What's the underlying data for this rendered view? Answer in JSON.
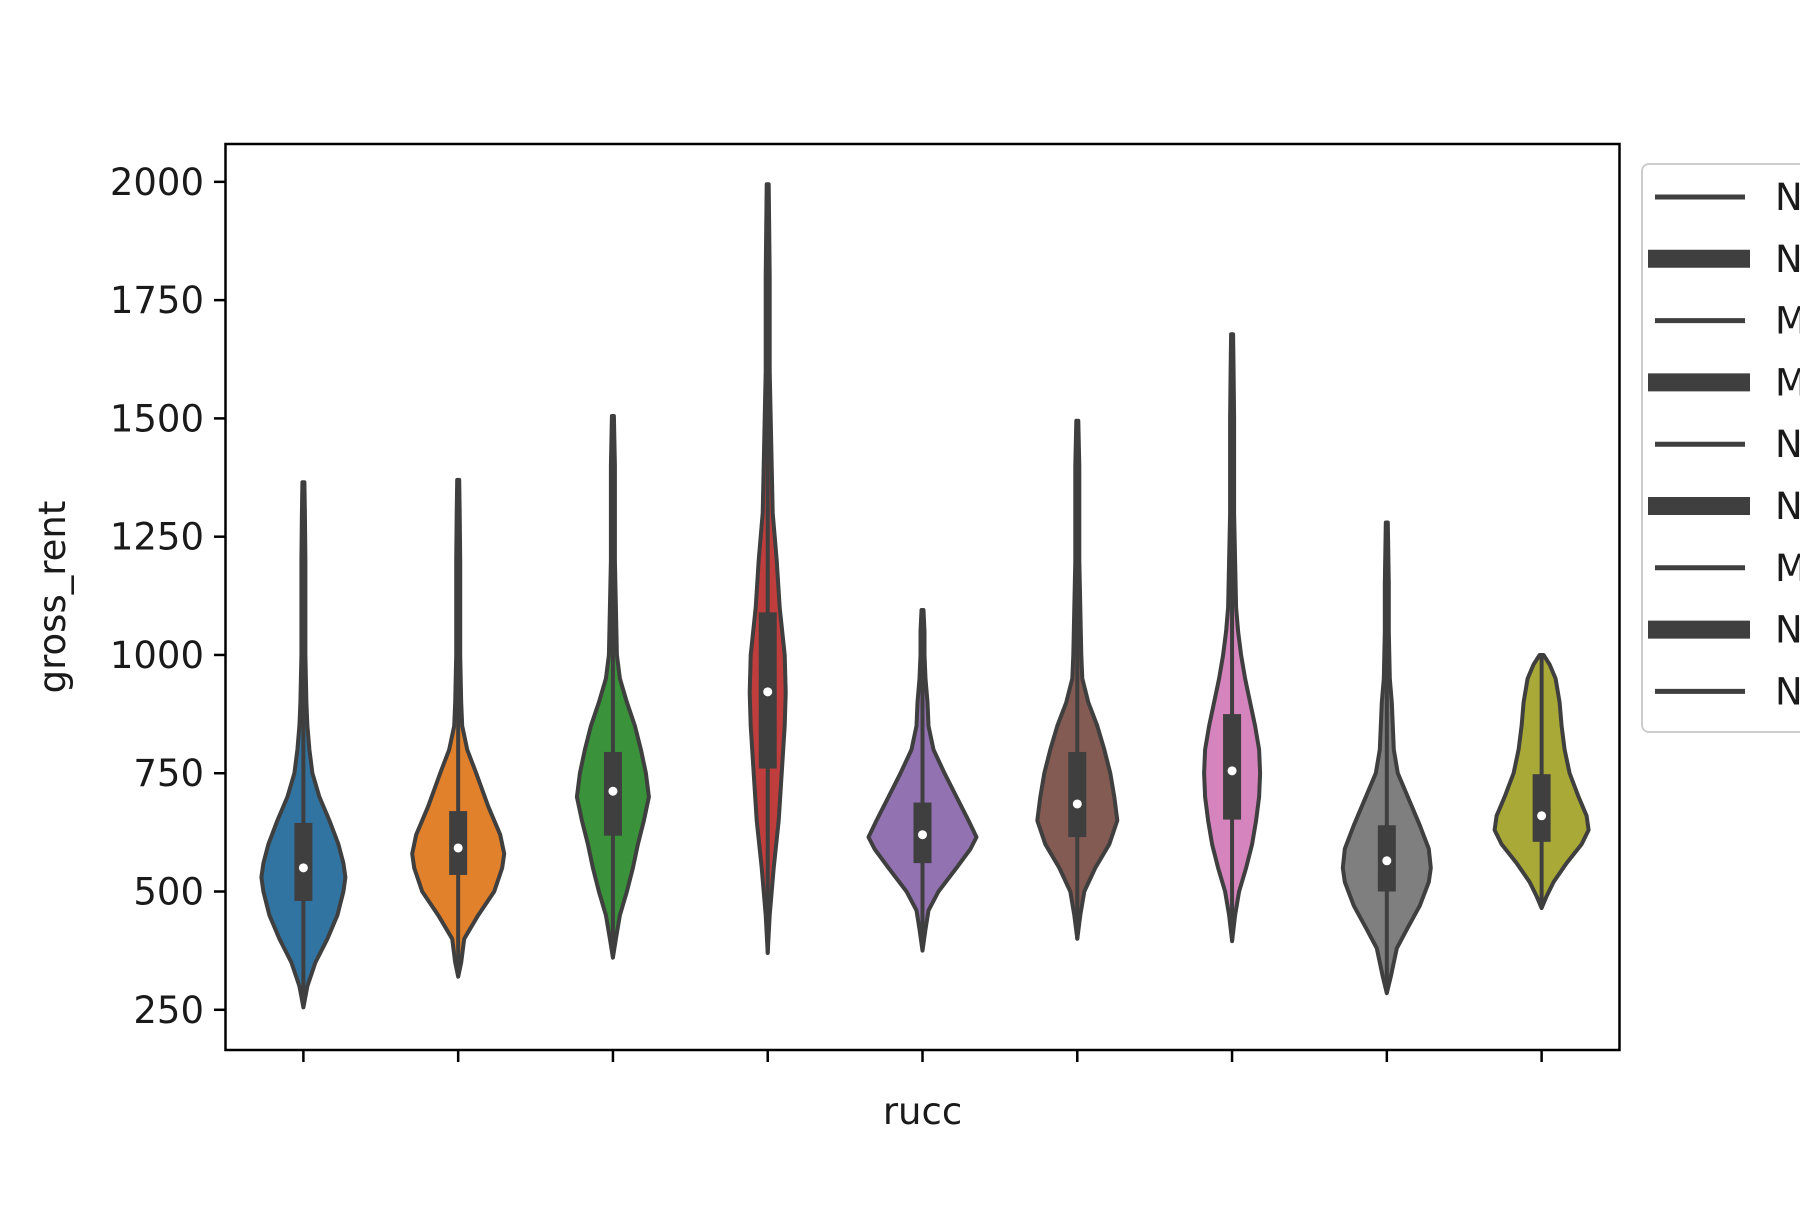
{
  "chart_data": {
    "type": "violin",
    "title": "",
    "xlabel": "rucc",
    "ylabel": "gross_rent",
    "ylim": [
      165,
      2080
    ],
    "yticks": [
      250,
      500,
      750,
      1000,
      1250,
      1500,
      1750,
      2000
    ],
    "categories": [
      "",
      "",
      "",
      "",
      "",
      "",
      "",
      "",
      ""
    ],
    "grid": false,
    "legend": {
      "placement": "right, outside plot (cropped)",
      "entries": [
        "N",
        "N",
        "M",
        "M",
        "N",
        "N",
        "M",
        "N",
        "N"
      ]
    },
    "series": [
      {
        "color": "#3274a1",
        "min": 255,
        "q1": 480,
        "median": 550,
        "q3": 645,
        "max": 1365,
        "profile": [
          [
            255,
            0
          ],
          [
            300,
            4
          ],
          [
            350,
            12
          ],
          [
            400,
            24
          ],
          [
            450,
            34
          ],
          [
            500,
            40
          ],
          [
            530,
            42
          ],
          [
            560,
            40
          ],
          [
            600,
            35
          ],
          [
            650,
            26
          ],
          [
            700,
            16
          ],
          [
            750,
            9
          ],
          [
            800,
            6
          ],
          [
            850,
            4
          ],
          [
            900,
            3
          ],
          [
            1000,
            2
          ],
          [
            1100,
            2
          ],
          [
            1200,
            2
          ],
          [
            1300,
            1.5
          ],
          [
            1365,
            1
          ]
        ]
      },
      {
        "color": "#e1812c",
        "min": 320,
        "q1": 535,
        "median": 592,
        "q3": 670,
        "max": 1370,
        "profile": [
          [
            320,
            0
          ],
          [
            350,
            3
          ],
          [
            400,
            6
          ],
          [
            450,
            20
          ],
          [
            500,
            36
          ],
          [
            550,
            44
          ],
          [
            580,
            46
          ],
          [
            620,
            42
          ],
          [
            680,
            30
          ],
          [
            750,
            18
          ],
          [
            800,
            9
          ],
          [
            850,
            4
          ],
          [
            900,
            3
          ],
          [
            1000,
            2
          ],
          [
            1100,
            2
          ],
          [
            1200,
            2
          ],
          [
            1300,
            1.5
          ],
          [
            1370,
            1
          ]
        ]
      },
      {
        "color": "#3a923a",
        "min": 360,
        "q1": 618,
        "median": 712,
        "q3": 795,
        "max": 1505,
        "profile": [
          [
            360,
            0
          ],
          [
            400,
            3
          ],
          [
            450,
            7
          ],
          [
            500,
            14
          ],
          [
            550,
            20
          ],
          [
            600,
            25
          ],
          [
            650,
            31
          ],
          [
            700,
            36
          ],
          [
            750,
            33
          ],
          [
            800,
            28
          ],
          [
            850,
            22
          ],
          [
            900,
            14
          ],
          [
            950,
            7
          ],
          [
            1000,
            4
          ],
          [
            1100,
            3
          ],
          [
            1200,
            2
          ],
          [
            1300,
            2
          ],
          [
            1400,
            2
          ],
          [
            1505,
            1
          ]
        ]
      },
      {
        "color": "#c03d3e",
        "min": 370,
        "q1": 760,
        "median": 922,
        "q3": 1090,
        "max": 1995,
        "profile": [
          [
            370,
            0
          ],
          [
            450,
            2
          ],
          [
            550,
            6
          ],
          [
            650,
            11
          ],
          [
            750,
            14
          ],
          [
            850,
            17
          ],
          [
            920,
            18
          ],
          [
            1000,
            17
          ],
          [
            1100,
            12
          ],
          [
            1200,
            9
          ],
          [
            1300,
            5
          ],
          [
            1400,
            4
          ],
          [
            1500,
            3
          ],
          [
            1600,
            2
          ],
          [
            1700,
            2
          ],
          [
            1800,
            2
          ],
          [
            1900,
            1.5
          ],
          [
            1995,
            1
          ]
        ]
      },
      {
        "color": "#9372b2",
        "min": 375,
        "q1": 560,
        "median": 620,
        "q3": 688,
        "max": 1095,
        "profile": [
          [
            375,
            0
          ],
          [
            420,
            3
          ],
          [
            460,
            6
          ],
          [
            500,
            16
          ],
          [
            550,
            34
          ],
          [
            590,
            48
          ],
          [
            615,
            54
          ],
          [
            650,
            46
          ],
          [
            700,
            34
          ],
          [
            750,
            22
          ],
          [
            800,
            11
          ],
          [
            850,
            6
          ],
          [
            900,
            5
          ],
          [
            950,
            3
          ],
          [
            1000,
            2
          ],
          [
            1050,
            2
          ],
          [
            1095,
            1
          ]
        ]
      },
      {
        "color": "#845b53",
        "min": 400,
        "q1": 615,
        "median": 685,
        "q3": 795,
        "max": 1495,
        "profile": [
          [
            400,
            0
          ],
          [
            450,
            3
          ],
          [
            500,
            7
          ],
          [
            550,
            18
          ],
          [
            600,
            32
          ],
          [
            650,
            40
          ],
          [
            700,
            37
          ],
          [
            750,
            33
          ],
          [
            800,
            27
          ],
          [
            850,
            20
          ],
          [
            900,
            11
          ],
          [
            950,
            5
          ],
          [
            1000,
            4
          ],
          [
            1100,
            3
          ],
          [
            1200,
            2
          ],
          [
            1300,
            2
          ],
          [
            1400,
            2
          ],
          [
            1495,
            1
          ]
        ]
      },
      {
        "color": "#d684bd",
        "min": 395,
        "q1": 652,
        "median": 755,
        "q3": 875,
        "max": 1678,
        "profile": [
          [
            395,
            0
          ],
          [
            450,
            3
          ],
          [
            500,
            7
          ],
          [
            550,
            14
          ],
          [
            600,
            20
          ],
          [
            650,
            24
          ],
          [
            700,
            27
          ],
          [
            750,
            28
          ],
          [
            800,
            27
          ],
          [
            850,
            23
          ],
          [
            900,
            18
          ],
          [
            950,
            13
          ],
          [
            1000,
            9
          ],
          [
            1050,
            6
          ],
          [
            1100,
            4
          ],
          [
            1200,
            3
          ],
          [
            1300,
            2
          ],
          [
            1400,
            2
          ],
          [
            1500,
            2
          ],
          [
            1600,
            1.5
          ],
          [
            1678,
            1
          ]
        ]
      },
      {
        "color": "#7f7f7f",
        "min": 285,
        "q1": 500,
        "median": 565,
        "q3": 640,
        "max": 1280,
        "profile": [
          [
            285,
            0
          ],
          [
            320,
            4
          ],
          [
            380,
            10
          ],
          [
            420,
            20
          ],
          [
            470,
            33
          ],
          [
            520,
            42
          ],
          [
            550,
            44
          ],
          [
            590,
            42
          ],
          [
            640,
            33
          ],
          [
            700,
            21
          ],
          [
            750,
            11
          ],
          [
            800,
            7
          ],
          [
            850,
            6
          ],
          [
            900,
            5
          ],
          [
            950,
            3
          ],
          [
            1050,
            2
          ],
          [
            1150,
            2
          ],
          [
            1280,
            1
          ]
        ]
      },
      {
        "color": "#a9a938",
        "min": 465,
        "q1": 605,
        "median": 660,
        "q3": 748,
        "max": 1000,
        "profile": [
          [
            465,
            0
          ],
          [
            490,
            5
          ],
          [
            520,
            12
          ],
          [
            560,
            25
          ],
          [
            600,
            40
          ],
          [
            630,
            47
          ],
          [
            660,
            45
          ],
          [
            700,
            37
          ],
          [
            750,
            28
          ],
          [
            800,
            23
          ],
          [
            850,
            20
          ],
          [
            900,
            18
          ],
          [
            950,
            14
          ],
          [
            980,
            8
          ],
          [
            1000,
            2
          ]
        ]
      }
    ]
  }
}
